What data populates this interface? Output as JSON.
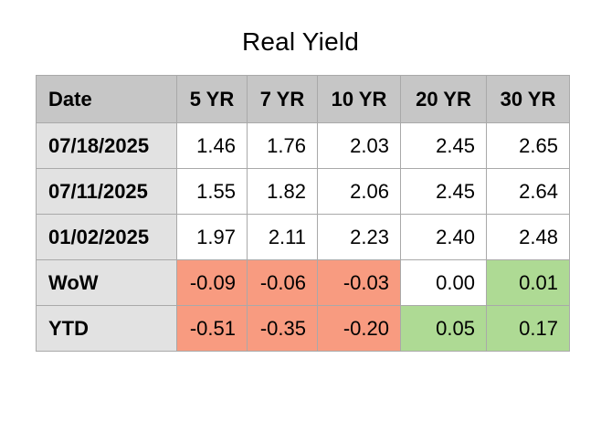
{
  "title": "Real Yield",
  "colors": {
    "page_bg": "#ffffff",
    "header_bg": "#c6c6c6",
    "label_bg": "#e2e2e2",
    "negative_bg": "#f89b80",
    "positive_bg": "#aeda94",
    "neutral_bg": "#ffffff",
    "border": "#a9a9a9",
    "text": "#000000"
  },
  "table": {
    "columns": [
      "Date",
      "5 YR",
      "7 YR",
      "10 YR",
      "20 YR",
      "30 YR"
    ],
    "rows": [
      {
        "label": "07/18/2025",
        "values": [
          "1.46",
          "1.76",
          "2.03",
          "2.45",
          "2.65"
        ],
        "states": [
          "neutral",
          "neutral",
          "neutral",
          "neutral",
          "neutral"
        ]
      },
      {
        "label": "07/11/2025",
        "values": [
          "1.55",
          "1.82",
          "2.06",
          "2.45",
          "2.64"
        ],
        "states": [
          "neutral",
          "neutral",
          "neutral",
          "neutral",
          "neutral"
        ]
      },
      {
        "label": "01/02/2025",
        "values": [
          "1.97",
          "2.11",
          "2.23",
          "2.40",
          "2.48"
        ],
        "states": [
          "neutral",
          "neutral",
          "neutral",
          "neutral",
          "neutral"
        ]
      },
      {
        "label": "WoW",
        "values": [
          "-0.09",
          "-0.06",
          "-0.03",
          "0.00",
          "0.01"
        ],
        "states": [
          "negative",
          "negative",
          "negative",
          "neutral",
          "positive"
        ]
      },
      {
        "label": "YTD",
        "values": [
          "-0.51",
          "-0.35",
          "-0.20",
          "0.05",
          "0.17"
        ],
        "states": [
          "negative",
          "negative",
          "negative",
          "positive",
          "positive"
        ]
      }
    ]
  },
  "chart_data": {
    "type": "table",
    "title": "Real Yield",
    "columns": [
      "Date",
      "5 YR",
      "7 YR",
      "10 YR",
      "20 YR",
      "30 YR"
    ],
    "rows": [
      [
        "07/18/2025",
        1.46,
        1.76,
        2.03,
        2.45,
        2.65
      ],
      [
        "07/11/2025",
        1.55,
        1.82,
        2.06,
        2.45,
        2.64
      ],
      [
        "01/02/2025",
        1.97,
        2.11,
        2.23,
        2.4,
        2.48
      ],
      [
        "WoW",
        -0.09,
        -0.06,
        -0.03,
        0.0,
        0.01
      ],
      [
        "YTD",
        -0.51,
        -0.35,
        -0.2,
        0.05,
        0.17
      ]
    ],
    "highlight_rule": "negative change cells salmon, positive change cells green, zero and level cells white"
  }
}
